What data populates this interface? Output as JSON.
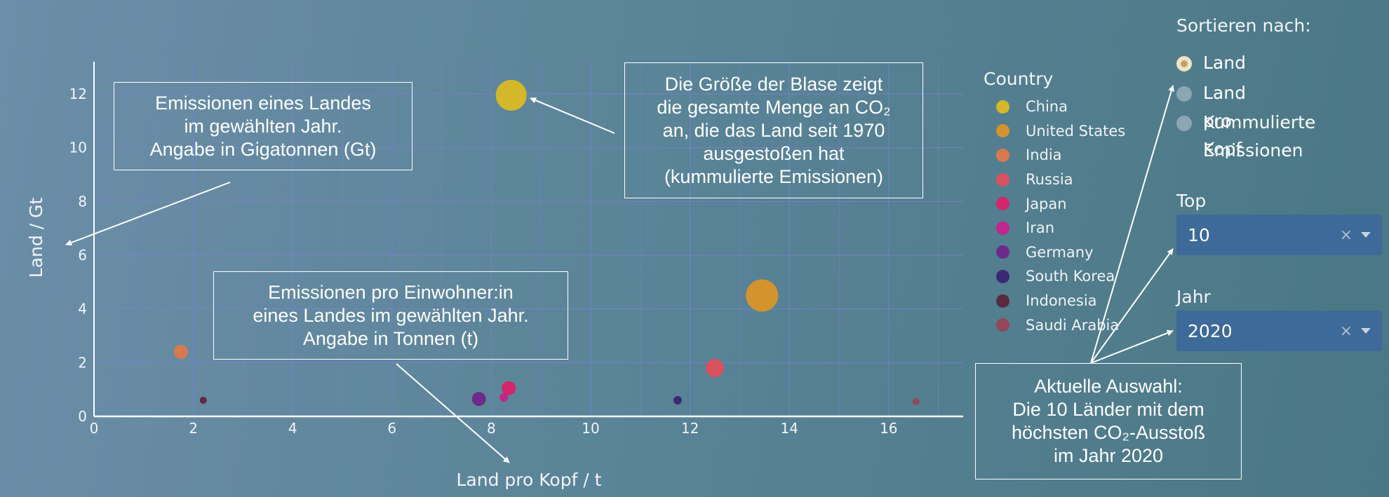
{
  "chart_data": {
    "type": "scatter",
    "xlabel": "Land pro Kopf / t",
    "ylabel": "Land / Gt",
    "xlim": [
      0,
      17.5
    ],
    "ylim": [
      0,
      13.2
    ],
    "x_ticks": [
      0,
      2,
      4,
      6,
      8,
      10,
      12,
      14,
      16
    ],
    "y_ticks": [
      0,
      2,
      4,
      6,
      8,
      10,
      12
    ],
    "grid": true,
    "legend_title": "Country",
    "legend_position": "right",
    "size_encoding": "cumulative emissions since 1970",
    "series": [
      {
        "name": "China",
        "color": "#d4b82a",
        "x": 8.4,
        "y": 11.95,
        "size": 44
      },
      {
        "name": "United States",
        "color": "#d3932e",
        "x": 13.45,
        "y": 4.5,
        "size": 46
      },
      {
        "name": "India",
        "color": "#d97a4e",
        "x": 1.75,
        "y": 2.4,
        "size": 20
      },
      {
        "name": "Russia",
        "color": "#d8515f",
        "x": 12.5,
        "y": 1.8,
        "size": 26
      },
      {
        "name": "Japan",
        "color": "#d3266b",
        "x": 8.35,
        "y": 1.05,
        "size": 20
      },
      {
        "name": "Iran",
        "color": "#c0268b",
        "x": 8.25,
        "y": 0.7,
        "size": 12
      },
      {
        "name": "Germany",
        "color": "#6e2a8a",
        "x": 7.75,
        "y": 0.65,
        "size": 20
      },
      {
        "name": "South Korea",
        "color": "#3a2a76",
        "x": 11.75,
        "y": 0.6,
        "size": 12
      },
      {
        "name": "Indonesia",
        "color": "#5a2a40",
        "x": 2.2,
        "y": 0.6,
        "size": 10
      },
      {
        "name": "Saudi Arabia",
        "color": "#93475a",
        "x": 16.55,
        "y": 0.55,
        "size": 10
      }
    ]
  },
  "annotations": {
    "total": "Emissionen eines Landes\nim gewählten Jahr.\nAngabe in Gigatonnen (Gt)",
    "bubble": "Die Größe der Blase zeigt\ndie gesamte Menge an CO₂\nan, die das Land seit 1970\nausgestoßen hat\n(kummulierte Emissionen)",
    "per_capita": "Emissionen pro Einwohner:in\neines Landes im gewählten Jahr.\nAngabe in Tonnen (t)",
    "selection": "Aktuelle Auswahl:\nDie 10 Länder mit dem\nhöchsten CO₂-Ausstoß\nim Jahr 2020"
  },
  "controls": {
    "sort_title": "Sortieren nach:",
    "sort_options": [
      {
        "label": "Land",
        "checked": true
      },
      {
        "label": "Land pro Kopf",
        "checked": false
      },
      {
        "label": "Kummulierte\nEmissionen",
        "checked": false
      }
    ],
    "top_title": "Top",
    "top_value": "10",
    "year_title": "Jahr",
    "year_value": "2020",
    "clear_symbol": "×"
  }
}
